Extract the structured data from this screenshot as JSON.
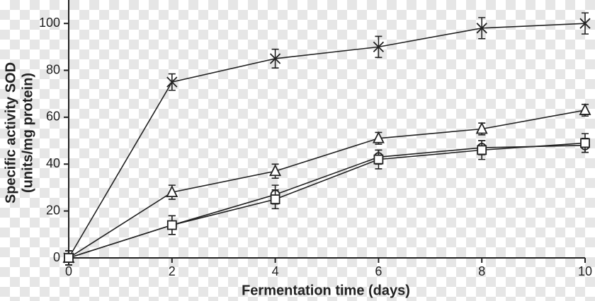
{
  "chart_data": {
    "type": "line",
    "x_label": "Fermentation time (days)",
    "y_label": [
      "Specific activity SOD",
      "(units/mg protein)"
    ],
    "x": [
      0,
      2,
      4,
      6,
      8,
      10
    ],
    "xlim": [
      0,
      10
    ],
    "xticks": [
      0,
      2,
      4,
      6,
      8,
      10
    ],
    "ylim": [
      0,
      110
    ],
    "yticks": [
      0,
      20,
      40,
      60,
      80,
      100
    ],
    "grid": false,
    "series": [
      {
        "marker": "x",
        "color": "#222222",
        "values": [
          0,
          75,
          85,
          90,
          98,
          100
        ],
        "errors": [
          3,
          3.5,
          4,
          4.5,
          4.5,
          4.5
        ]
      },
      {
        "marker": "triangle",
        "color": "#222222",
        "values": [
          0,
          28,
          37,
          51,
          55,
          63
        ],
        "errors": [
          3,
          3,
          3,
          2.5,
          2.5,
          2.5
        ]
      },
      {
        "marker": "circle",
        "color": "#222222",
        "values": [
          0,
          14,
          27,
          43,
          47,
          48
        ],
        "errors": [
          3,
          4,
          4,
          3,
          3,
          3
        ]
      },
      {
        "marker": "square",
        "color": "#222222",
        "values": [
          0,
          14,
          25,
          42,
          46,
          49
        ],
        "errors": [
          3,
          4,
          4,
          4,
          4,
          4
        ]
      }
    ]
  }
}
